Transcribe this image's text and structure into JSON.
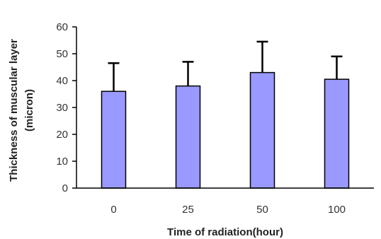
{
  "chart_data": {
    "type": "bar",
    "title": "",
    "xlabel": "Time of radiation(hour)",
    "ylabel_lines": [
      "Thickness of muscular layer",
      "(micron)"
    ],
    "categories": [
      "0",
      "25",
      "50",
      "100"
    ],
    "values": [
      36,
      38,
      43,
      40.5
    ],
    "error_upper": [
      10.5,
      9,
      11.5,
      8.5
    ],
    "ylim": [
      0,
      60
    ],
    "yticks": [
      0,
      10,
      20,
      30,
      40,
      50,
      60
    ],
    "bar_color": "#9999ff",
    "bar_edge_color": "#000000",
    "grid": false,
    "legend": "none"
  }
}
